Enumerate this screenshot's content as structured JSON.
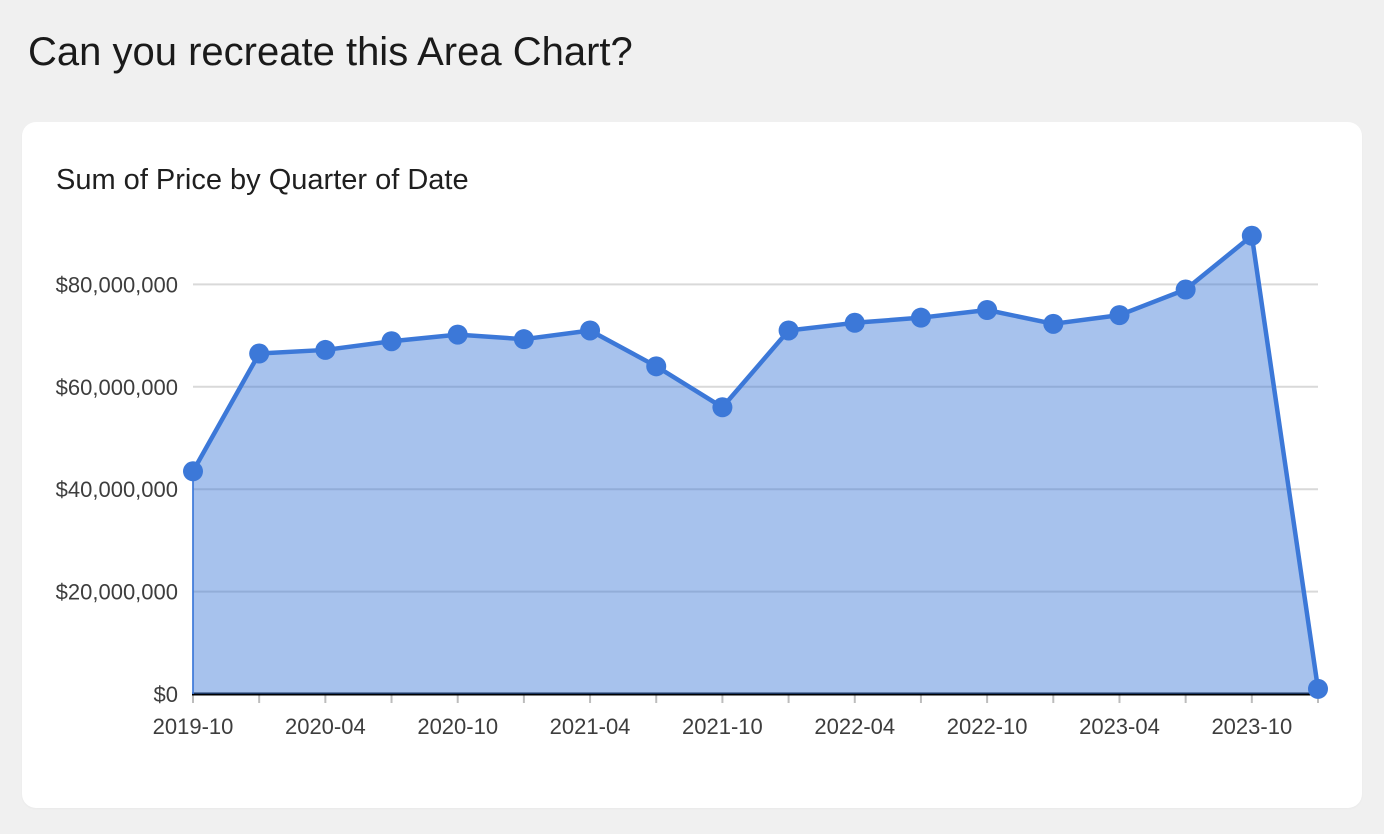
{
  "page": {
    "heading": "Can you recreate this Area Chart?"
  },
  "chart_data": {
    "type": "area",
    "title": "Sum of Price by Quarter of Date",
    "x": [
      "2019-10",
      "2020-01",
      "2020-04",
      "2020-07",
      "2020-10",
      "2021-01",
      "2021-04",
      "2021-07",
      "2021-10",
      "2022-01",
      "2022-04",
      "2022-07",
      "2022-10",
      "2023-01",
      "2023-04",
      "2023-07",
      "2023-10",
      "2024-01"
    ],
    "values": [
      43500000,
      66500000,
      67200000,
      68900000,
      70200000,
      69300000,
      71000000,
      64000000,
      56000000,
      71000000,
      72500000,
      73500000,
      75000000,
      72300000,
      74000000,
      79000000,
      89500000,
      1000000
    ],
    "x_tick_labels": [
      "2019-10",
      "2020-04",
      "2020-10",
      "2021-04",
      "2021-10",
      "2022-04",
      "2022-10",
      "2023-04",
      "2023-10"
    ],
    "y_tick_labels": [
      "$0",
      "$20,000,000",
      "$40,000,000",
      "$60,000,000",
      "$80,000,000"
    ],
    "y_tick_values": [
      0,
      20000000,
      40000000,
      60000000,
      80000000
    ],
    "ylim": [
      0,
      90000000
    ],
    "grid": "horizontal",
    "legend": "none",
    "colors": {
      "line": "#3c78d8",
      "fill": "#3c78d8",
      "fill_opacity": 0.45,
      "gridline": "#d9d9d9",
      "axis_line": "#000000",
      "tick": "#bdbdbd",
      "axis_label": "#3d3d3d",
      "page_bg": "#f0f0f0",
      "card_bg": "#ffffff"
    }
  }
}
